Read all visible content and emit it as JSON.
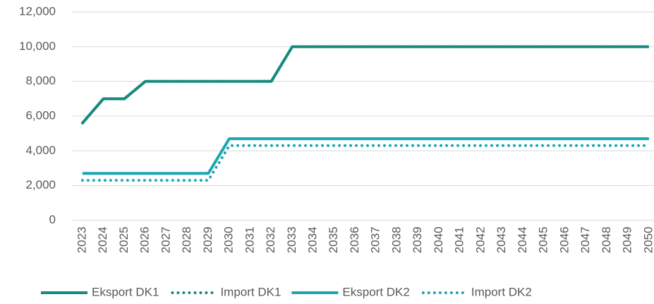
{
  "chart_data": {
    "type": "line",
    "categories": [
      "2023",
      "2024",
      "2025",
      "2026",
      "2027",
      "2028",
      "2029",
      "2030",
      "2031",
      "2032",
      "2033",
      "2034",
      "2035",
      "2036",
      "2037",
      "2038",
      "2039",
      "2040",
      "2041",
      "2042",
      "2043",
      "2044",
      "2045",
      "2046",
      "2047",
      "2048",
      "2049",
      "2050"
    ],
    "series": [
      {
        "name": "Eksport DK1",
        "color": "#168a7c",
        "dash": false,
        "values": [
          5600,
          7000,
          7000,
          8000,
          8000,
          8000,
          8000,
          8000,
          8000,
          8000,
          10000,
          10000,
          10000,
          10000,
          10000,
          10000,
          10000,
          10000,
          10000,
          10000,
          10000,
          10000,
          10000,
          10000,
          10000,
          10000,
          10000,
          10000
        ]
      },
      {
        "name": "Import DK1",
        "color": "#168a7c",
        "dash": true,
        "values": [
          5600,
          7000,
          7000,
          8000,
          8000,
          8000,
          8000,
          8000,
          8000,
          8000,
          10000,
          10000,
          10000,
          10000,
          10000,
          10000,
          10000,
          10000,
          10000,
          10000,
          10000,
          10000,
          10000,
          10000,
          10000,
          10000,
          10000,
          10000
        ]
      },
      {
        "name": "Eksport DK2",
        "color": "#1ba6b4",
        "dash": false,
        "values": [
          2700,
          2700,
          2700,
          2700,
          2700,
          2700,
          2700,
          4700,
          4700,
          4700,
          4700,
          4700,
          4700,
          4700,
          4700,
          4700,
          4700,
          4700,
          4700,
          4700,
          4700,
          4700,
          4700,
          4700,
          4700,
          4700,
          4700,
          4700
        ]
      },
      {
        "name": "Import DK2",
        "color": "#1ba6b4",
        "dash": true,
        "values": [
          2300,
          2300,
          2300,
          2300,
          2300,
          2300,
          2300,
          4300,
          4300,
          4300,
          4300,
          4300,
          4300,
          4300,
          4300,
          4300,
          4300,
          4300,
          4300,
          4300,
          4300,
          4300,
          4300,
          4300,
          4300,
          4300,
          4300,
          4300
        ]
      }
    ],
    "ylim": [
      0,
      12000
    ],
    "yticks": [
      0,
      {
        "value": 2000,
        "label": "2,000"
      },
      {
        "value": 4000,
        "label": "4,000"
      },
      {
        "value": 6000,
        "label": "6,000"
      },
      {
        "value": 8000,
        "label": "8,000"
      },
      {
        "value": 10000,
        "label": "10,000"
      },
      {
        "value": 12000,
        "label": "12,000"
      }
    ],
    "grid": true,
    "legend": "bottom"
  }
}
